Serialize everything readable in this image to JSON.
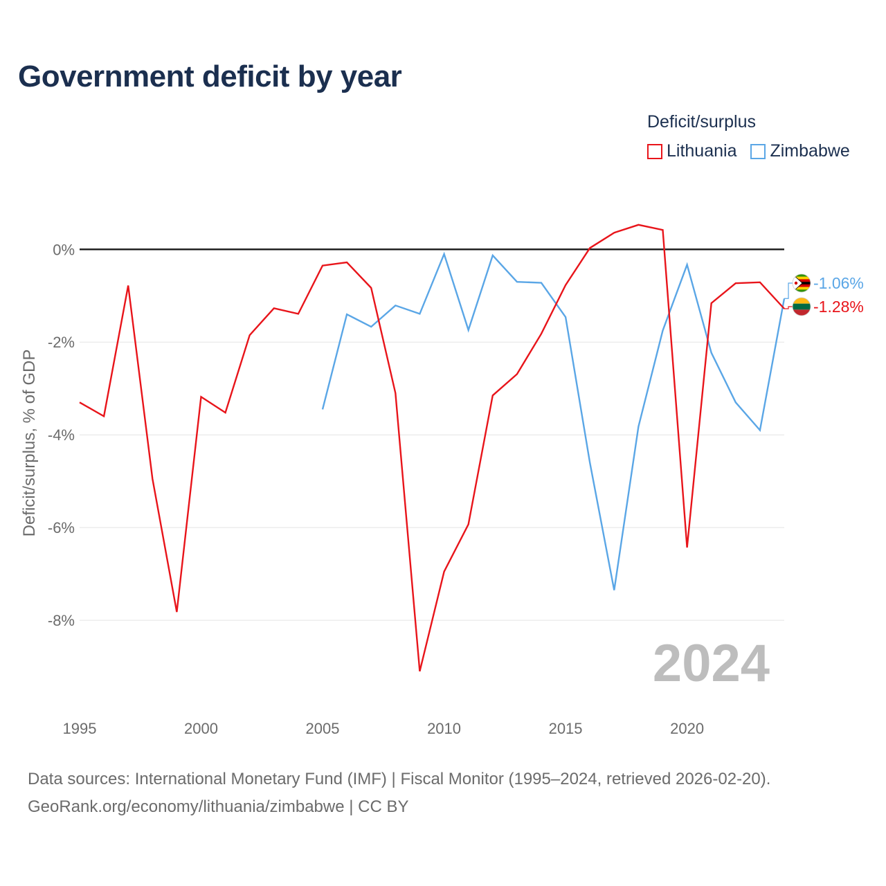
{
  "title": "Government deficit by year",
  "legend": {
    "title": "Deficit/surplus",
    "items": [
      {
        "name": "Lithuania",
        "color": "#e8141a"
      },
      {
        "name": "Zimbabwe",
        "color": "#5aa6e6"
      }
    ]
  },
  "footer": {
    "line1": "Data sources: International Monetary Fund (IMF) | Fiscal Monitor (1995–2024, retrieved 2026-02-20).",
    "line2": "GeoRank.org/economy/lithuania/zimbabwe | CC BY"
  },
  "year_watermark": "2024",
  "chart_data": {
    "type": "line",
    "title": "Government deficit by year",
    "xlabel": "",
    "ylabel": "Deficit/surplus, % of GDP",
    "xlim": [
      1995,
      2024
    ],
    "ylim": [
      -9.7,
      0.9
    ],
    "x_ticks": [
      1995,
      2000,
      2005,
      2010,
      2015,
      2020
    ],
    "y_ticks": [
      0,
      -2,
      -4,
      -6,
      -8
    ],
    "y_tick_labels": [
      "0%",
      "-2%",
      "-4%",
      "-6%",
      "-8%"
    ],
    "x_tick_labels": [
      "1995",
      "2000",
      "2005",
      "2010",
      "2015",
      "2020"
    ],
    "legend_position": "top-right",
    "series": [
      {
        "name": "Lithuania",
        "color": "#e8141a",
        "end_label": "-1.28%",
        "flag": "lithuania",
        "x": [
          1995,
          1996,
          1997,
          1998,
          1999,
          2000,
          2001,
          2002,
          2003,
          2004,
          2005,
          2006,
          2007,
          2008,
          2009,
          2010,
          2011,
          2012,
          2013,
          2014,
          2015,
          2016,
          2017,
          2018,
          2019,
          2020,
          2021,
          2022,
          2023,
          2024
        ],
        "values": [
          -3.3,
          -3.6,
          -0.78,
          -4.95,
          -7.82,
          -3.18,
          -3.52,
          -1.85,
          -1.27,
          -1.39,
          -0.35,
          -0.28,
          -0.83,
          -3.1,
          -9.1,
          -6.95,
          -5.93,
          -3.15,
          -2.69,
          -1.82,
          -0.77,
          0.03,
          0.36,
          0.53,
          0.42,
          -6.43,
          -1.16,
          -0.73,
          -0.71,
          -1.28
        ]
      },
      {
        "name": "Zimbabwe",
        "color": "#5aa6e6",
        "end_label": "-1.06%",
        "flag": "zimbabwe",
        "x": [
          2005,
          2006,
          2007,
          2008,
          2009,
          2010,
          2011,
          2012,
          2013,
          2014,
          2015,
          2016,
          2017,
          2018,
          2019,
          2020,
          2021,
          2022,
          2023,
          2024
        ],
        "values": [
          -3.45,
          -1.4,
          -1.67,
          -1.21,
          -1.39,
          -0.1,
          -1.74,
          -0.13,
          -0.7,
          -0.72,
          -1.46,
          -4.6,
          -7.35,
          -3.82,
          -1.75,
          -0.33,
          -2.23,
          -3.3,
          -3.9,
          -1.06
        ]
      }
    ]
  }
}
